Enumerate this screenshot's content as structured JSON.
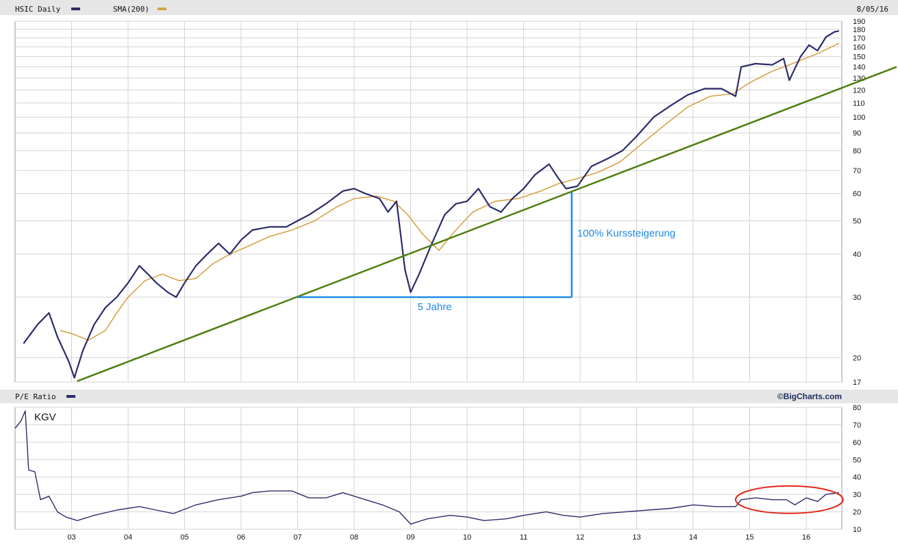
{
  "header": {
    "symbol_label": "HSIC Daily",
    "sma_label": "SMA(200)",
    "date_label": "8/05/16"
  },
  "pe_header": {
    "label": "P/E Ratio",
    "brand": "©BigCharts.com"
  },
  "colors": {
    "price_line": "#2b2a6b",
    "sma_line": "#d4a347",
    "trend_line": "#4e7d0e",
    "annotation": "#1e88e5",
    "circle": "#e32619",
    "grid": "#d3d3d3",
    "band": "#e6e6e6"
  },
  "annotations": {
    "horizontal_label": "5 Jahre",
    "vertical_label": "100% Kurssteigerung",
    "pe_label": "KGV"
  },
  "chart_data": [
    {
      "type": "line",
      "title": "HSIC Daily",
      "scale": "log",
      "ylim": [
        17,
        190
      ],
      "y_ticks": [
        17,
        20,
        30,
        40,
        50,
        60,
        70,
        80,
        90,
        100,
        110,
        120,
        130,
        140,
        150,
        160,
        170,
        180,
        190
      ],
      "x_ticks": [
        "03",
        "04",
        "05",
        "06",
        "07",
        "08",
        "09",
        "10",
        "11",
        "12",
        "13",
        "14",
        "15",
        "16"
      ],
      "grid": true,
      "legend_position": "top-left",
      "series": [
        {
          "name": "HSIC Daily",
          "points": [
            [
              2002.15,
              22
            ],
            [
              2002.4,
              25
            ],
            [
              2002.6,
              27
            ],
            [
              2002.75,
              23
            ],
            [
              2002.95,
              19.5
            ],
            [
              2003.05,
              17.5
            ],
            [
              2003.2,
              21
            ],
            [
              2003.4,
              25
            ],
            [
              2003.6,
              28
            ],
            [
              2003.8,
              30
            ],
            [
              2004.0,
              33
            ],
            [
              2004.2,
              37
            ],
            [
              2004.35,
              35
            ],
            [
              2004.5,
              33
            ],
            [
              2004.7,
              31
            ],
            [
              2004.85,
              30
            ],
            [
              2005.0,
              33
            ],
            [
              2005.2,
              37
            ],
            [
              2005.4,
              40
            ],
            [
              2005.6,
              43
            ],
            [
              2005.8,
              40
            ],
            [
              2006.0,
              44
            ],
            [
              2006.2,
              47
            ],
            [
              2006.5,
              48
            ],
            [
              2006.8,
              48
            ],
            [
              2007.0,
              50
            ],
            [
              2007.2,
              52
            ],
            [
              2007.5,
              56
            ],
            [
              2007.8,
              61
            ],
            [
              2008.0,
              62
            ],
            [
              2008.2,
              60
            ],
            [
              2008.45,
              58
            ],
            [
              2008.6,
              53
            ],
            [
              2008.75,
              57
            ],
            [
              2008.9,
              36
            ],
            [
              2009.0,
              31
            ],
            [
              2009.15,
              35
            ],
            [
              2009.35,
              42
            ],
            [
              2009.6,
              52
            ],
            [
              2009.8,
              56
            ],
            [
              2010.0,
              57
            ],
            [
              2010.2,
              62
            ],
            [
              2010.4,
              55
            ],
            [
              2010.6,
              53
            ],
            [
              2010.8,
              58
            ],
            [
              2011.0,
              62
            ],
            [
              2011.2,
              68
            ],
            [
              2011.45,
              73
            ],
            [
              2011.6,
              67
            ],
            [
              2011.75,
              62
            ],
            [
              2011.95,
              63
            ],
            [
              2012.2,
              72
            ],
            [
              2012.5,
              76
            ],
            [
              2012.75,
              80
            ],
            [
              2013.0,
              88
            ],
            [
              2013.3,
              100
            ],
            [
              2013.6,
              108
            ],
            [
              2013.9,
              116
            ],
            [
              2014.2,
              121
            ],
            [
              2014.5,
              121
            ],
            [
              2014.75,
              115
            ],
            [
              2014.85,
              140
            ],
            [
              2015.1,
              143
            ],
            [
              2015.4,
              142
            ],
            [
              2015.6,
              148
            ],
            [
              2015.7,
              128
            ],
            [
              2015.9,
              150
            ],
            [
              2016.05,
              162
            ],
            [
              2016.2,
              156
            ],
            [
              2016.35,
              171
            ],
            [
              2016.5,
              177
            ],
            [
              2016.58,
              178
            ]
          ]
        },
        {
          "name": "SMA(200)",
          "points": [
            [
              2002.8,
              24
            ],
            [
              2003.0,
              23.5
            ],
            [
              2003.3,
              22.5
            ],
            [
              2003.6,
              24
            ],
            [
              2003.8,
              27
            ],
            [
              2004.0,
              30
            ],
            [
              2004.3,
              33.5
            ],
            [
              2004.6,
              35
            ],
            [
              2004.9,
              33.5
            ],
            [
              2005.2,
              34
            ],
            [
              2005.5,
              37.5
            ],
            [
              2005.8,
              40
            ],
            [
              2006.1,
              42
            ],
            [
              2006.5,
              45
            ],
            [
              2006.9,
              47
            ],
            [
              2007.3,
              50
            ],
            [
              2007.7,
              55
            ],
            [
              2008.0,
              58
            ],
            [
              2008.4,
              59
            ],
            [
              2008.7,
              57
            ],
            [
              2008.95,
              52
            ],
            [
              2009.2,
              46
            ],
            [
              2009.5,
              41
            ],
            [
              2009.8,
              47
            ],
            [
              2010.1,
              53
            ],
            [
              2010.5,
              57
            ],
            [
              2010.9,
              58
            ],
            [
              2011.3,
              61
            ],
            [
              2011.6,
              64
            ],
            [
              2011.9,
              66
            ],
            [
              2012.3,
              69
            ],
            [
              2012.7,
              74
            ],
            [
              2013.1,
              84
            ],
            [
              2013.5,
              95
            ],
            [
              2013.9,
              107
            ],
            [
              2014.3,
              115
            ],
            [
              2014.7,
              117
            ],
            [
              2015.0,
              126
            ],
            [
              2015.4,
              136
            ],
            [
              2015.8,
              144
            ],
            [
              2016.2,
              153
            ],
            [
              2016.58,
              164
            ]
          ]
        }
      ]
    },
    {
      "type": "line",
      "title": "P/E Ratio",
      "ylim": [
        10,
        80
      ],
      "y_ticks": [
        10,
        20,
        30,
        40,
        50,
        60,
        70,
        80
      ],
      "x_ticks": [
        "03",
        "04",
        "05",
        "06",
        "07",
        "08",
        "09",
        "10",
        "11",
        "12",
        "13",
        "14",
        "15",
        "16"
      ],
      "grid": true,
      "series": [
        {
          "name": "P/E Ratio",
          "points": [
            [
              2002.0,
              68
            ],
            [
              2002.1,
              72
            ],
            [
              2002.18,
              78
            ],
            [
              2002.24,
              44
            ],
            [
              2002.35,
              43
            ],
            [
              2002.45,
              27
            ],
            [
              2002.6,
              29
            ],
            [
              2002.75,
              20
            ],
            [
              2002.9,
              17
            ],
            [
              2003.1,
              15
            ],
            [
              2003.4,
              18
            ],
            [
              2003.8,
              21
            ],
            [
              2004.2,
              23
            ],
            [
              2004.5,
              21
            ],
            [
              2004.8,
              19
            ],
            [
              2005.2,
              24
            ],
            [
              2005.6,
              27
            ],
            [
              2006.0,
              29
            ],
            [
              2006.2,
              31
            ],
            [
              2006.5,
              32
            ],
            [
              2006.9,
              32
            ],
            [
              2007.2,
              28
            ],
            [
              2007.5,
              28
            ],
            [
              2007.8,
              31
            ],
            [
              2008.2,
              27
            ],
            [
              2008.5,
              24
            ],
            [
              2008.8,
              20
            ],
            [
              2009.0,
              13
            ],
            [
              2009.3,
              16
            ],
            [
              2009.7,
              18
            ],
            [
              2010.0,
              17
            ],
            [
              2010.3,
              15
            ],
            [
              2010.7,
              16
            ],
            [
              2011.0,
              18
            ],
            [
              2011.4,
              20
            ],
            [
              2011.7,
              18
            ],
            [
              2012.0,
              17
            ],
            [
              2012.4,
              19
            ],
            [
              2012.8,
              20
            ],
            [
              2013.2,
              21
            ],
            [
              2013.6,
              22
            ],
            [
              2014.0,
              24
            ],
            [
              2014.4,
              23
            ],
            [
              2014.75,
              23
            ],
            [
              2014.85,
              27
            ],
            [
              2015.1,
              28
            ],
            [
              2015.4,
              27
            ],
            [
              2015.65,
              27
            ],
            [
              2015.8,
              24
            ],
            [
              2016.0,
              28
            ],
            [
              2016.2,
              26
            ],
            [
              2016.35,
              30
            ],
            [
              2016.58,
              31
            ]
          ]
        }
      ]
    }
  ],
  "overlays": {
    "trend_line": [
      [
        2003.1,
        17.1
      ],
      [
        2017.6,
        140
      ]
    ],
    "measure_horizontal": {
      "x_from": 2007.0,
      "x_to": 2011.85,
      "y": 30
    },
    "measure_vertical": {
      "x": 2011.85,
      "y_from": 30,
      "y_to": 60.5
    },
    "pe_highlight": {
      "x_from": 2014.75,
      "x_to": 2016.65,
      "y_center": 27
    }
  }
}
